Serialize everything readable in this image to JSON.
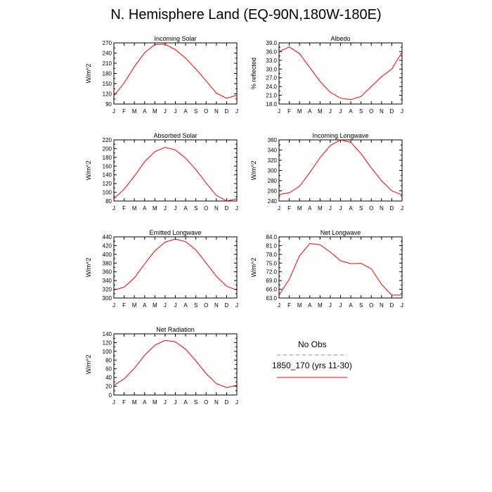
{
  "figure": {
    "title": "N. Hemisphere Land (EQ-90N,180W-180E)"
  },
  "legend": {
    "title": "No Obs",
    "entries": [
      {
        "label": "",
        "color": "#8080ff",
        "dash": true
      },
      {
        "label": "1850_170 (yrs 11-30)",
        "color": "#ff0000",
        "dash": false
      }
    ]
  },
  "chart_data": [
    {
      "type": "line",
      "title": "Incoming Solar",
      "ylabel": "W/m^2",
      "ylim": [
        90,
        270
      ],
      "yticks": [
        "90",
        "120",
        "150",
        "180",
        "210",
        "240",
        "270"
      ],
      "x": [
        "J",
        "F",
        "M",
        "A",
        "M",
        "J",
        "J",
        "A",
        "S",
        "O",
        "N",
        "D",
        "J"
      ],
      "series": [
        {
          "color": "#ff0000",
          "values": [
            114,
            152,
            200,
            241,
            265,
            266,
            250,
            225,
            193,
            158,
            122,
            107,
            116
          ]
        }
      ]
    },
    {
      "type": "line",
      "title": "Albedo",
      "ylabel": "% reflected",
      "ylim": [
        18.0,
        39.0
      ],
      "yticks": [
        "18.0",
        "21.0",
        "24.0",
        "27.0",
        "30.0",
        "33.0",
        "36.0",
        "39.0"
      ],
      "x": [
        "J",
        "F",
        "M",
        "A",
        "M",
        "J",
        "J",
        "A",
        "S",
        "O",
        "N",
        "D",
        "J"
      ],
      "series": [
        {
          "color": "#ff0000",
          "values": [
            36.0,
            37.6,
            35.3,
            30.5,
            25.8,
            22.0,
            20.0,
            19.5,
            20.6,
            24.0,
            27.4,
            30.0,
            35.8
          ]
        }
      ]
    },
    {
      "type": "line",
      "title": "Absorbed Solar",
      "ylabel": "W/m^2",
      "ylim": [
        80,
        220
      ],
      "yticks": [
        "80",
        "100",
        "120",
        "140",
        "160",
        "180",
        "200",
        "220"
      ],
      "x": [
        "J",
        "F",
        "M",
        "A",
        "M",
        "J",
        "J",
        "A",
        "S",
        "O",
        "N",
        "D",
        "J"
      ],
      "series": [
        {
          "color": "#ff0000",
          "values": [
            85,
            107,
            137,
            170,
            193,
            203,
            197,
            178,
            152,
            121,
            93,
            80,
            85
          ]
        }
      ]
    },
    {
      "type": "line",
      "title": "Incoming Longwave",
      "ylabel": "W/m^2",
      "ylim": [
        240,
        360
      ],
      "yticks": [
        "240",
        "260",
        "280",
        "300",
        "320",
        "340",
        "360"
      ],
      "x": [
        "J",
        "F",
        "M",
        "A",
        "M",
        "J",
        "J",
        "A",
        "S",
        "O",
        "N",
        "D",
        "J"
      ],
      "series": [
        {
          "color": "#ff0000",
          "values": [
            253,
            256,
            269,
            296,
            325,
            349,
            360,
            355,
            333,
            305,
            280,
            260,
            252
          ]
        }
      ]
    },
    {
      "type": "line",
      "title": "Emitted Longwave",
      "ylabel": "W/m^2",
      "ylim": [
        300,
        440
      ],
      "yticks": [
        "300",
        "320",
        "340",
        "360",
        "380",
        "400",
        "420",
        "440"
      ],
      "x": [
        "J",
        "F",
        "M",
        "A",
        "M",
        "J",
        "J",
        "A",
        "S",
        "O",
        "N",
        "D",
        "J"
      ],
      "series": [
        {
          "color": "#ff0000",
          "values": [
            318,
            325,
            346,
            378,
            408,
            428,
            435,
            429,
            410,
            380,
            350,
            327,
            318
          ]
        }
      ]
    },
    {
      "type": "line",
      "title": "Net Longwave",
      "ylabel": "W/m^2",
      "ylim": [
        63.0,
        84.0
      ],
      "yticks": [
        "63.0",
        "66.0",
        "69.0",
        "72.0",
        "75.0",
        "78.0",
        "81.0",
        "84.0"
      ],
      "x": [
        "J",
        "F",
        "M",
        "A",
        "M",
        "J",
        "J",
        "A",
        "S",
        "O",
        "N",
        "D",
        "J"
      ],
      "series": [
        {
          "color": "#ff0000",
          "values": [
            64.0,
            69.5,
            77.5,
            81.7,
            81.3,
            78.8,
            75.8,
            74.8,
            74.9,
            73.0,
            67.7,
            64.0,
            64.0
          ]
        }
      ]
    },
    {
      "type": "line",
      "title": "Net Radiation",
      "ylabel": "W/m^2",
      "ylim": [
        0,
        140
      ],
      "yticks": [
        "0",
        "20",
        "40",
        "60",
        "80",
        "100",
        "120",
        "140"
      ],
      "x": [
        "J",
        "F",
        "M",
        "A",
        "M",
        "J",
        "J",
        "A",
        "S",
        "O",
        "N",
        "D",
        "J"
      ],
      "series": [
        {
          "color": "#ff0000",
          "values": [
            22,
            37,
            61,
            91,
            114,
            125,
            122,
            105,
            78,
            49,
            26,
            17,
            22
          ]
        }
      ]
    }
  ]
}
